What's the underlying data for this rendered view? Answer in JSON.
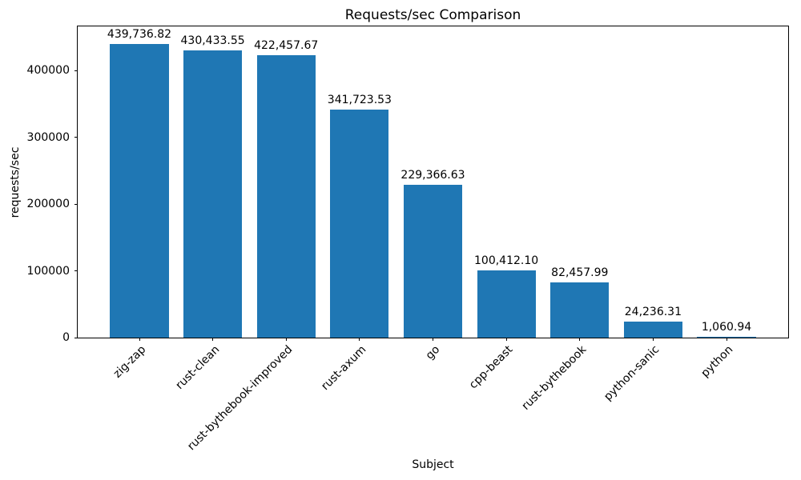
{
  "figure": {
    "background": "#ffffff"
  },
  "chart_data": {
    "type": "bar",
    "title": "Requests/sec Comparison",
    "xlabel": "Subject",
    "ylabel": "requests/sec",
    "categories": [
      "zig-zap",
      "rust-clean",
      "rust-bythebook-improved",
      "rust-axum",
      "go",
      "cpp-beast",
      "rust-bythebook",
      "python-sanic",
      "python"
    ],
    "values": [
      439736.82,
      430433.55,
      422457.67,
      341723.53,
      229366.63,
      100412.1,
      82457.99,
      24236.31,
      1060.94
    ],
    "value_labels": [
      "439,736.82",
      "430,433.55",
      "422,457.67",
      "341,723.53",
      "229,366.63",
      "100,412.10",
      "82,457.99",
      "24,236.31",
      "1,060.94"
    ],
    "yticks": [
      0,
      100000,
      200000,
      300000,
      400000
    ],
    "ytick_labels": [
      "0",
      "100000",
      "200000",
      "300000",
      "400000"
    ],
    "ylim": [
      0,
      465800
    ],
    "xlim": [
      -0.84,
      8.84
    ],
    "bar_width": 0.8,
    "bar_color": "#1f77b4",
    "text_color": "#000000",
    "x_tick_rotation": 45,
    "grid": false,
    "legend": false
  }
}
